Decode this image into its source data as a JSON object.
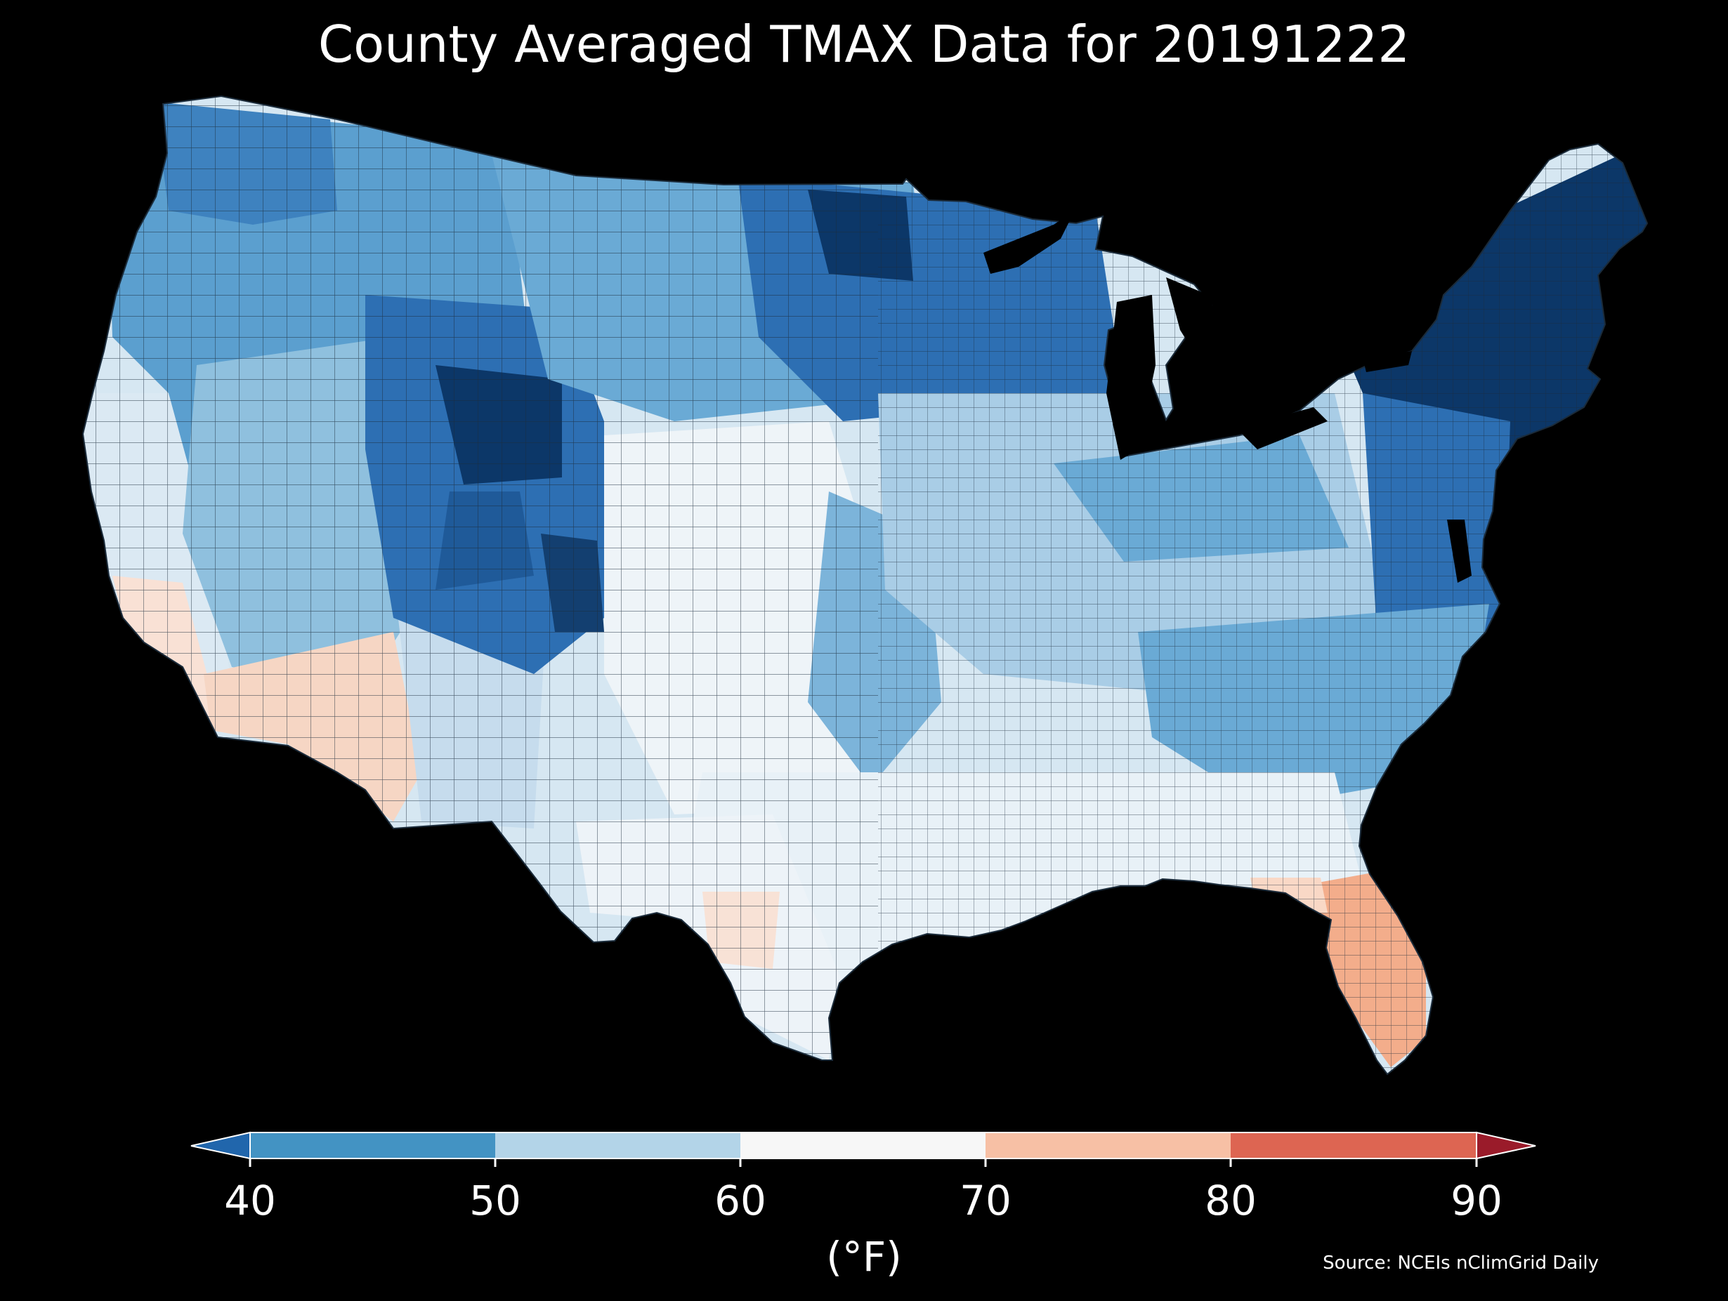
{
  "title": "County Averaged TMAX Data for 20191222",
  "colorbar": {
    "ticks": [
      "40",
      "50",
      "60",
      "70",
      "80",
      "90"
    ],
    "unit_label": "(°F)",
    "bins": [
      {
        "range": "< 40",
        "color": "#2166ac"
      },
      {
        "range": "40-50",
        "color": "#4393c3"
      },
      {
        "range": "50-60",
        "color": "#b3d4e8"
      },
      {
        "range": "60-70",
        "color": "#f7f7f7"
      },
      {
        "range": "70-80",
        "color": "#f7c0a5"
      },
      {
        "range": "80-90",
        "color": "#dd6552"
      },
      {
        "range": "> 90",
        "color": "#9a1b2a"
      }
    ]
  },
  "map_colors": {
    "very_cold": "#0c3768",
    "cold": "#2d6fb3",
    "cool": "#5b9fcf",
    "mild_cool": "#9ac7e2",
    "neutral": "#eef4f8",
    "warm": "#fbe4d8",
    "hot": "#f3ad8b",
    "border": "#1b2b3a"
  },
  "source": "Source: NCEIs nClimGrid Daily"
}
